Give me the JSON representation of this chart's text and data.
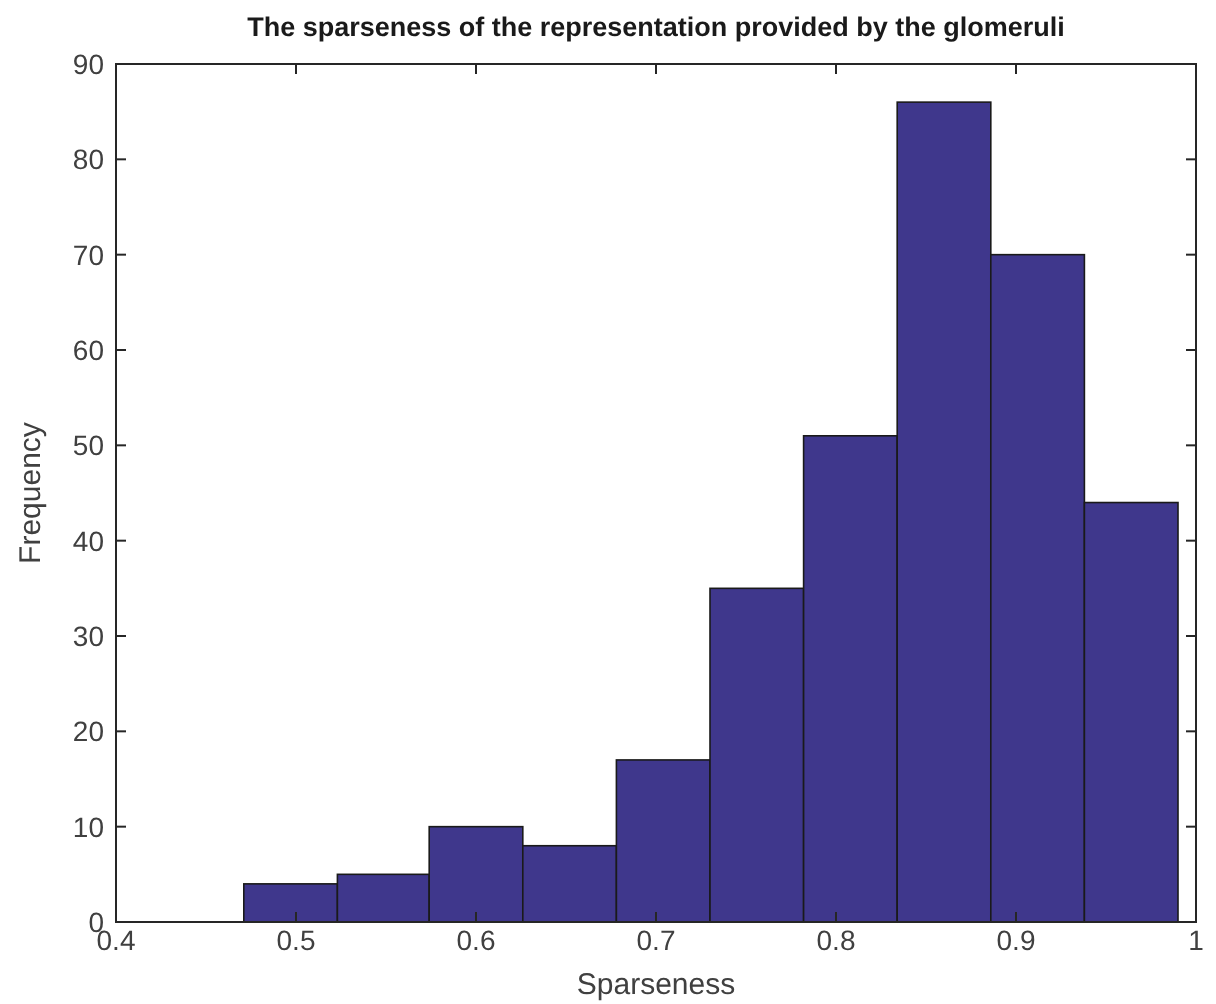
{
  "chart_data": {
    "type": "histogram",
    "title": "The sparseness of the representation provided by the glomeruli",
    "xlabel": "Sparseness",
    "ylabel": "Frequency",
    "bins": [
      0.471,
      0.523,
      0.574,
      0.626,
      0.678,
      0.73,
      0.782,
      0.834,
      0.886,
      0.938,
      0.99
    ],
    "values": [
      4,
      5,
      10,
      8,
      17,
      35,
      51,
      86,
      70,
      44
    ],
    "color": "#3f378c",
    "xlim": [
      0.4,
      1
    ],
    "xticks": [
      0.4,
      0.5,
      0.6,
      0.7,
      0.8,
      0.9,
      1
    ],
    "ylim": [
      0,
      90
    ],
    "yticks": [
      0,
      10,
      20,
      30,
      40,
      50,
      60,
      70,
      80,
      90
    ],
    "grid": false
  }
}
